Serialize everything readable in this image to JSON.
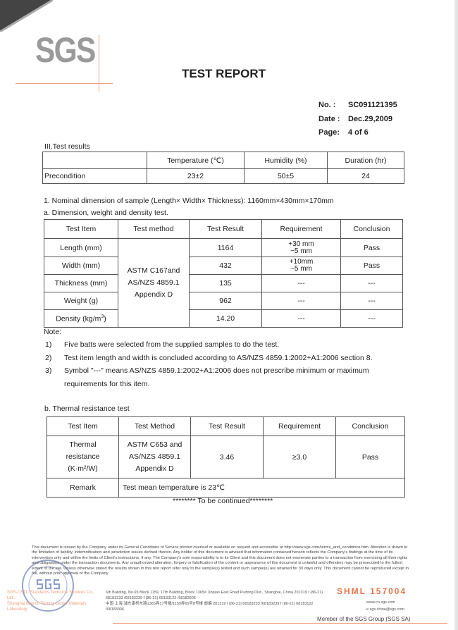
{
  "header": {
    "logo": "SGS",
    "title": "TEST REPORT",
    "no_label": "No.  :",
    "no": "SC091121395",
    "date_label": "Date :",
    "date": "Dec.29,2009",
    "page_label": "Page:",
    "page": "4 of 6"
  },
  "section_title": "III.Test results",
  "conditions": {
    "headers": [
      "",
      "Temperature (℃)",
      "Humidity (%)",
      "Duration (hr)"
    ],
    "row": [
      "Precondition",
      "23±2",
      "50±5",
      "24"
    ]
  },
  "nominal": "1. Nominal dimension of sample (Length× Width× Thickness): 1160mm×430mm×170mm",
  "dim_title": "a. Dimension, weight and density test.",
  "dim_table": {
    "headers": [
      "Test Item",
      "Test method",
      "Test Result",
      "Requirement",
      "Conclusion"
    ],
    "method": [
      "ASTM C167and",
      "AS/NZS 4859.1",
      "Appendix D"
    ],
    "rows": [
      {
        "item": "Length (mm)",
        "result": "1164",
        "req1": "+30 mm",
        "req2": "−5 mm",
        "conclusion": "Pass"
      },
      {
        "item": "Width (mm)",
        "result": "432",
        "req1": "+10mm",
        "req2": "−5 mm",
        "conclusion": "Pass"
      },
      {
        "item": "Thickness (mm)",
        "result": "135",
        "req1": "---",
        "req2": "",
        "conclusion": "---"
      },
      {
        "item": "Weight (g)",
        "result": "962",
        "req1": "---",
        "req2": "",
        "conclusion": "---"
      },
      {
        "item": "Density (kg/m",
        "sup": "3",
        "item_end": ")",
        "result": "14.20",
        "req1": "---",
        "req2": "",
        "conclusion": "---"
      }
    ]
  },
  "notes": {
    "label": "Note:",
    "items": [
      {
        "n": "1)",
        "text": "Five batts were selected from the supplied samples to do the test."
      },
      {
        "n": "2)",
        "text": "Test item length and width is concluded according to AS/NZS 4859.1:2002+A1:2006 section 8."
      },
      {
        "n": "3)",
        "text": "Symbol \"---\" means AS/NZS 4859.1:2002+A1:2006 does not prescribe minimum or maximum",
        "text2": "requirements for this item."
      }
    ]
  },
  "thermal_title": "b. Thermal resistance test",
  "thermal_table": {
    "headers": [
      "Test Item",
      "Test Method",
      "Test Result",
      "Requirement",
      "Conclusion"
    ],
    "item": [
      "Thermal",
      "resistance",
      "(K·m²/W)"
    ],
    "method": [
      "ASTM C653 and",
      "AS/NZS 4859.1",
      "Appendix D"
    ],
    "result": "3.46",
    "requirement": "≥3.0",
    "conclusion": "Pass",
    "remark_label": "Remark",
    "remark": "Test mean temperature is 23℃"
  },
  "continued": "******** To be continued********",
  "footer": {
    "disclaimer": "This document is issued by the Company under its General Conditions of Service printed overleaf or available on request and accessible at http://www.sgs.com/terms_and_conditions.htm. Attention is drawn to the limitation of liability, indemnification and jurisdiction issues defined therein. Any holder of this document is advised that information contained hereon reflects the Company's findings at the time of its intervention only and within the limits of Client's instructions, if any. The Company's sole responsibility is to its Client and this document does not exonerate parties to a transaction from exercising all their rights and obligations under the transaction documents. Any unauthorized alteration, forgery or falsification of the content or appearance of this document is unlawful and offenders may be prosecuted to the fullest extent of the law. Unless otherwise stated the results shown in this test report refer only to the sample(s) tested and such sample(s) are retained for 30 days only. This document cannot be reproduced except in full, without prior approval of the Company.",
    "shml": "SHML  157004",
    "company1": "SGS-CSTC Standards Technical Services Co., Ltd.",
    "company2": "Shanghai Branch Testing Center Materials Laboratory",
    "addr_en": "6th Building, No.65 Block 1159, 17th Building, Block 1365# Jinqiao East Road Pudong Dist., Shanghai, China 201319   t (86-21) 68183233 /68183239   f (86-21) 68183122 /68183906",
    "web": "www.cn.sgs.com",
    "addr_cn": "中国·上海·浦东康桥东路1365弄17号楼/1159弄65号8号楼  邮编 201319   t (86-21) 68183233 /68183239   f (86-21) 68183122 /68183906",
    "email": "e sgs.china@sgs.com",
    "stamp": "SGS",
    "member": "Member of the SGS Group (SGS SA)"
  }
}
